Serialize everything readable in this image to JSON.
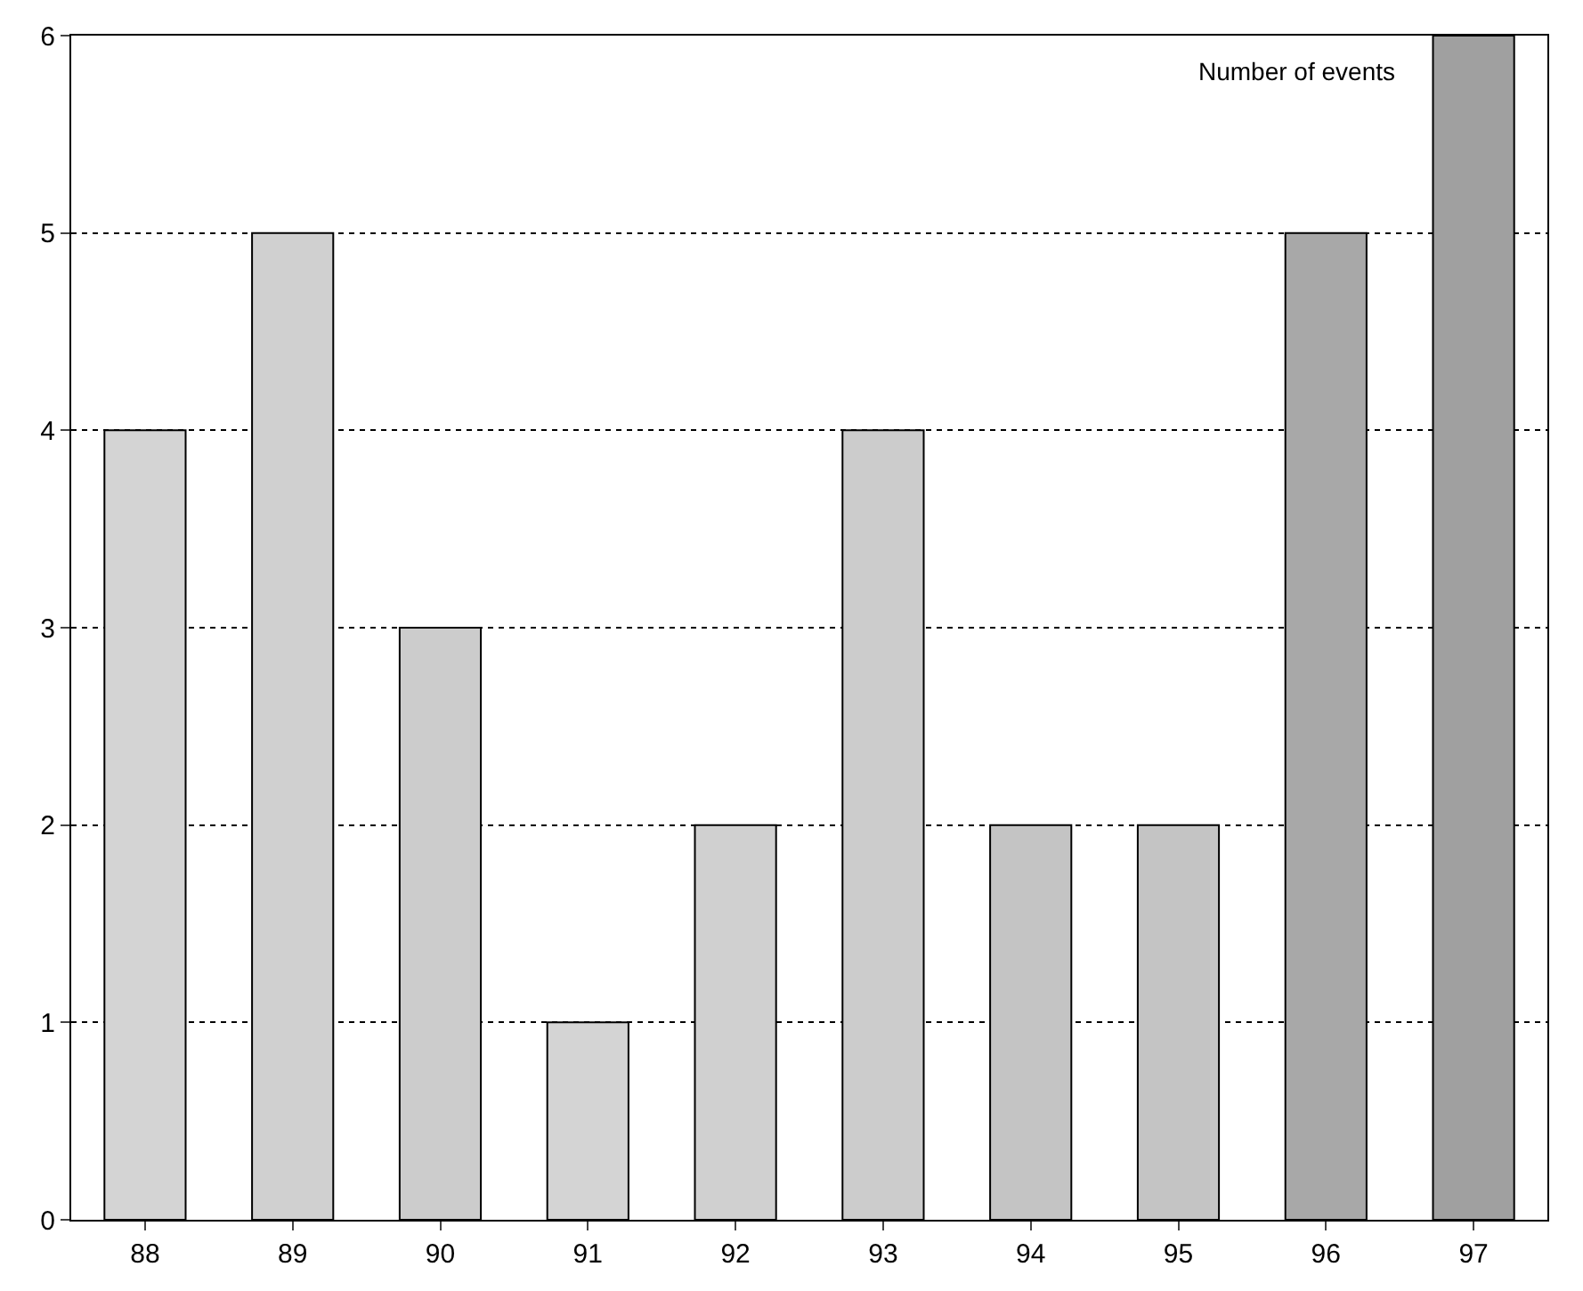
{
  "chart_data": {
    "type": "bar",
    "categories": [
      "88",
      "89",
      "90",
      "91",
      "92",
      "93",
      "94",
      "95",
      "96",
      "97"
    ],
    "values": [
      4,
      5,
      3,
      1,
      2,
      4,
      2,
      2,
      5,
      6
    ],
    "colors": [
      "#d4d4d4",
      "#d0d0d0",
      "#cccccc",
      "#d4d4d4",
      "#d0d0d0",
      "#cccccc",
      "#c4c4c4",
      "#c4c4c4",
      "#a8a8a8",
      "#a0a0a0"
    ],
    "ylim": [
      0,
      6
    ],
    "yticks": [
      0,
      1,
      2,
      3,
      4,
      5,
      6
    ],
    "grid": "y",
    "annotations": [
      "Number of events"
    ]
  }
}
